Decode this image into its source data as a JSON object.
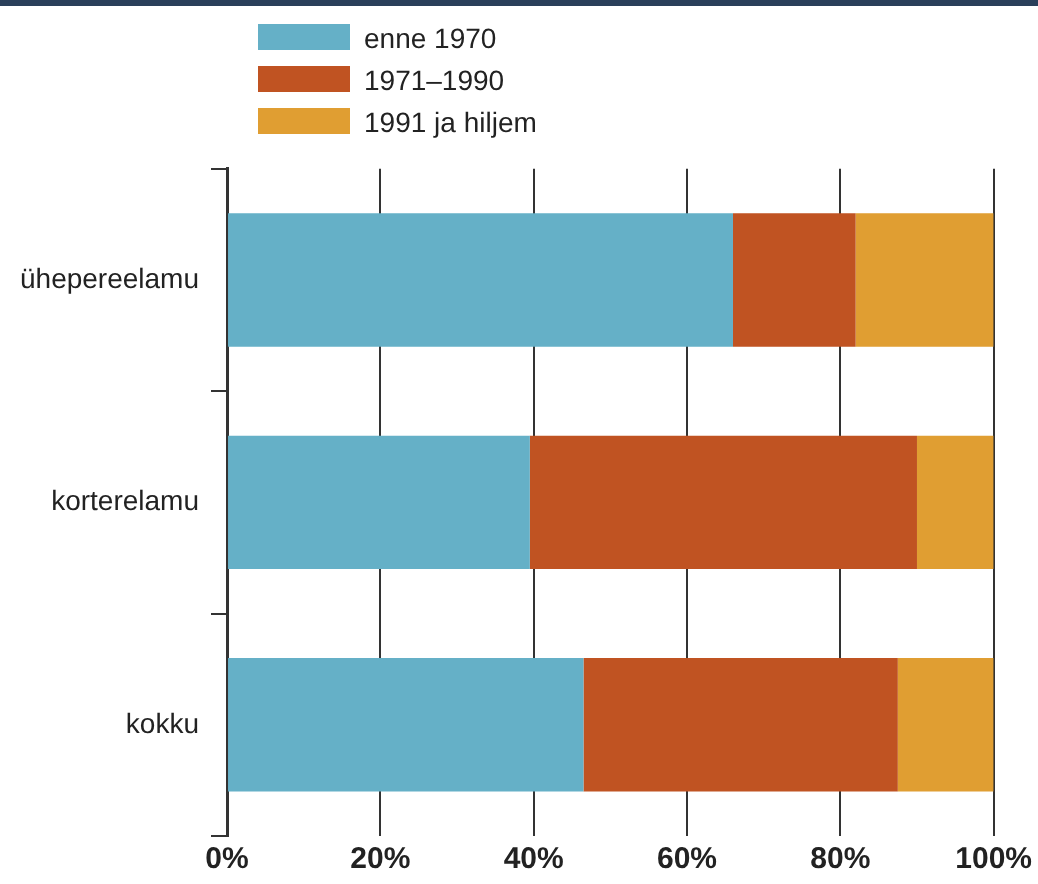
{
  "chart_data": {
    "type": "bar",
    "orientation": "horizontal",
    "stacked": true,
    "categories": [
      "ühepereelamu",
      "korterelamu",
      "kokku"
    ],
    "series": [
      {
        "name": "enne 1970",
        "color": "#65b0c7",
        "values": [
          66,
          39.5,
          46.5
        ]
      },
      {
        "name": "1971–1990",
        "color": "#c05322",
        "values": [
          16,
          50.5,
          41
        ]
      },
      {
        "name": "1991 ja hiljem",
        "color": "#e09e32",
        "values": [
          18,
          10,
          12.5
        ]
      }
    ],
    "xlim": [
      0,
      100
    ],
    "xticks": [
      {
        "value": 0,
        "label": "0%"
      },
      {
        "value": 20,
        "label": "20%"
      },
      {
        "value": 40,
        "label": "40%"
      },
      {
        "value": 60,
        "label": "60%"
      },
      {
        "value": 80,
        "label": "80%"
      },
      {
        "value": 100,
        "label": "100%"
      }
    ],
    "grid": "x",
    "legend": "top left"
  }
}
